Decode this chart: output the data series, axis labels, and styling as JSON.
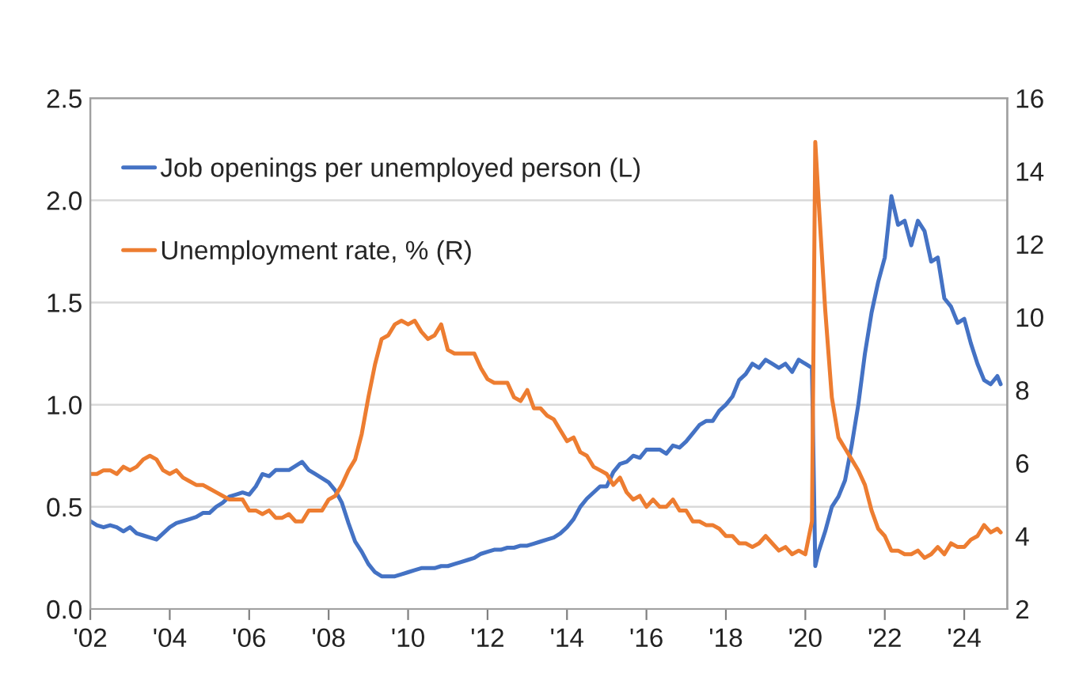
{
  "chart_data": {
    "type": "line",
    "x": [
      "2002-01",
      "2002-03",
      "2002-05",
      "2002-07",
      "2002-09",
      "2002-11",
      "2003-01",
      "2003-03",
      "2003-05",
      "2003-07",
      "2003-09",
      "2003-11",
      "2004-01",
      "2004-03",
      "2004-05",
      "2004-07",
      "2004-09",
      "2004-11",
      "2005-01",
      "2005-03",
      "2005-05",
      "2005-07",
      "2005-09",
      "2005-11",
      "2006-01",
      "2006-03",
      "2006-05",
      "2006-07",
      "2006-09",
      "2006-11",
      "2007-01",
      "2007-03",
      "2007-05",
      "2007-07",
      "2007-09",
      "2007-11",
      "2008-01",
      "2008-03",
      "2008-05",
      "2008-07",
      "2008-09",
      "2008-11",
      "2009-01",
      "2009-03",
      "2009-05",
      "2009-07",
      "2009-09",
      "2009-11",
      "2010-01",
      "2010-03",
      "2010-05",
      "2010-07",
      "2010-09",
      "2010-11",
      "2011-01",
      "2011-03",
      "2011-05",
      "2011-07",
      "2011-09",
      "2011-11",
      "2012-01",
      "2012-03",
      "2012-05",
      "2012-07",
      "2012-09",
      "2012-11",
      "2013-01",
      "2013-03",
      "2013-05",
      "2013-07",
      "2013-09",
      "2013-11",
      "2014-01",
      "2014-03",
      "2014-05",
      "2014-07",
      "2014-09",
      "2014-11",
      "2015-01",
      "2015-03",
      "2015-05",
      "2015-07",
      "2015-09",
      "2015-11",
      "2016-01",
      "2016-03",
      "2016-05",
      "2016-07",
      "2016-09",
      "2016-11",
      "2017-01",
      "2017-03",
      "2017-05",
      "2017-07",
      "2017-09",
      "2017-11",
      "2018-01",
      "2018-03",
      "2018-05",
      "2018-07",
      "2018-09",
      "2018-11",
      "2019-01",
      "2019-03",
      "2019-05",
      "2019-07",
      "2019-09",
      "2019-11",
      "2020-01",
      "2020-03",
      "2020-04",
      "2020-05",
      "2020-07",
      "2020-09",
      "2020-11",
      "2021-01",
      "2021-03",
      "2021-05",
      "2021-07",
      "2021-09",
      "2021-11",
      "2022-01",
      "2022-03",
      "2022-05",
      "2022-07",
      "2022-09",
      "2022-11",
      "2023-01",
      "2023-03",
      "2023-05",
      "2023-07",
      "2023-09",
      "2023-11",
      "2024-01",
      "2024-03",
      "2024-05",
      "2024-07",
      "2024-09",
      "2024-11",
      "2024-12"
    ],
    "series": [
      {
        "name": "Job openings per unemployed person (L)",
        "color": "#4472c4",
        "values": [
          0.43,
          0.41,
          0.4,
          0.41,
          0.4,
          0.38,
          0.4,
          0.37,
          0.36,
          0.35,
          0.34,
          0.37,
          0.4,
          0.42,
          0.43,
          0.44,
          0.45,
          0.47,
          0.47,
          0.5,
          0.52,
          0.55,
          0.56,
          0.57,
          0.56,
          0.6,
          0.66,
          0.65,
          0.68,
          0.68,
          0.68,
          0.7,
          0.72,
          0.68,
          0.66,
          0.64,
          0.62,
          0.58,
          0.52,
          0.42,
          0.33,
          0.28,
          0.22,
          0.18,
          0.16,
          0.16,
          0.16,
          0.17,
          0.18,
          0.19,
          0.2,
          0.2,
          0.2,
          0.21,
          0.21,
          0.22,
          0.23,
          0.24,
          0.25,
          0.27,
          0.28,
          0.29,
          0.29,
          0.3,
          0.3,
          0.31,
          0.31,
          0.32,
          0.33,
          0.34,
          0.35,
          0.37,
          0.4,
          0.44,
          0.5,
          0.54,
          0.57,
          0.6,
          0.6,
          0.67,
          0.71,
          0.72,
          0.75,
          0.74,
          0.78,
          0.78,
          0.78,
          0.76,
          0.8,
          0.79,
          0.82,
          0.86,
          0.9,
          0.92,
          0.92,
          0.97,
          1.0,
          1.04,
          1.12,
          1.15,
          1.2,
          1.18,
          1.22,
          1.2,
          1.18,
          1.2,
          1.16,
          1.22,
          1.2,
          1.18,
          0.21,
          0.28,
          0.38,
          0.5,
          0.55,
          0.63,
          0.8,
          1.0,
          1.25,
          1.45,
          1.6,
          1.72,
          2.02,
          1.88,
          1.9,
          1.78,
          1.9,
          1.85,
          1.7,
          1.72,
          1.52,
          1.48,
          1.4,
          1.42,
          1.3,
          1.2,
          1.12,
          1.1,
          1.14,
          1.1
        ]
      },
      {
        "name": "Unemployment rate, % (R)",
        "color": "#ed7d31",
        "axis": "y2",
        "values": [
          5.7,
          5.7,
          5.8,
          5.8,
          5.7,
          5.9,
          5.8,
          5.9,
          6.1,
          6.2,
          6.1,
          5.8,
          5.7,
          5.8,
          5.6,
          5.5,
          5.4,
          5.4,
          5.3,
          5.2,
          5.1,
          5.0,
          5.0,
          5.0,
          4.7,
          4.7,
          4.6,
          4.7,
          4.5,
          4.5,
          4.6,
          4.4,
          4.4,
          4.7,
          4.7,
          4.7,
          5.0,
          5.1,
          5.4,
          5.8,
          6.1,
          6.8,
          7.8,
          8.7,
          9.4,
          9.5,
          9.8,
          9.9,
          9.8,
          9.9,
          9.6,
          9.4,
          9.5,
          9.8,
          9.1,
          9.0,
          9.0,
          9.0,
          9.0,
          8.6,
          8.3,
          8.2,
          8.2,
          8.2,
          7.8,
          7.7,
          8.0,
          7.5,
          7.5,
          7.3,
          7.2,
          6.9,
          6.6,
          6.7,
          6.3,
          6.2,
          5.9,
          5.8,
          5.7,
          5.4,
          5.6,
          5.2,
          5.0,
          5.1,
          4.8,
          5.0,
          4.8,
          4.8,
          5.0,
          4.7,
          4.7,
          4.4,
          4.4,
          4.3,
          4.3,
          4.2,
          4.0,
          4.0,
          3.8,
          3.8,
          3.7,
          3.8,
          4.0,
          3.8,
          3.6,
          3.7,
          3.5,
          3.6,
          3.5,
          4.4,
          14.8,
          13.2,
          10.2,
          7.8,
          6.7,
          6.4,
          6.1,
          5.8,
          5.4,
          4.7,
          4.2,
          4.0,
          3.6,
          3.6,
          3.5,
          3.5,
          3.6,
          3.4,
          3.5,
          3.7,
          3.5,
          3.8,
          3.7,
          3.7,
          3.9,
          4.0,
          4.3,
          4.1,
          4.2,
          4.1
        ]
      }
    ],
    "xlim": [
      "2002-01",
      "2025-02"
    ],
    "xticks": [
      {
        "value": "2002-01",
        "label": "'02"
      },
      {
        "value": "2004-01",
        "label": "'04"
      },
      {
        "value": "2006-01",
        "label": "'06"
      },
      {
        "value": "2008-01",
        "label": "'08"
      },
      {
        "value": "2010-01",
        "label": "'10"
      },
      {
        "value": "2012-01",
        "label": "'12"
      },
      {
        "value": "2014-01",
        "label": "'14"
      },
      {
        "value": "2016-01",
        "label": "'16"
      },
      {
        "value": "2018-01",
        "label": "'18"
      },
      {
        "value": "2020-01",
        "label": "'20"
      },
      {
        "value": "2022-01",
        "label": "'22"
      },
      {
        "value": "2024-01",
        "label": "'24"
      }
    ],
    "ylim": [
      0,
      2.5
    ],
    "yticks": [
      {
        "value": 0,
        "label": "0.0"
      },
      {
        "value": 0.5,
        "label": "0.5"
      },
      {
        "value": 1.0,
        "label": "1.0"
      },
      {
        "value": 1.5,
        "label": "1.5"
      },
      {
        "value": 2.0,
        "label": "2.0"
      },
      {
        "value": 2.5,
        "label": "2.5"
      }
    ],
    "y2lim": [
      2,
      16
    ],
    "y2ticks": [
      2,
      4,
      6,
      8,
      10,
      12,
      14,
      16
    ],
    "grid": "y",
    "legend": "top left",
    "line_style": "solid",
    "marker": "none"
  }
}
